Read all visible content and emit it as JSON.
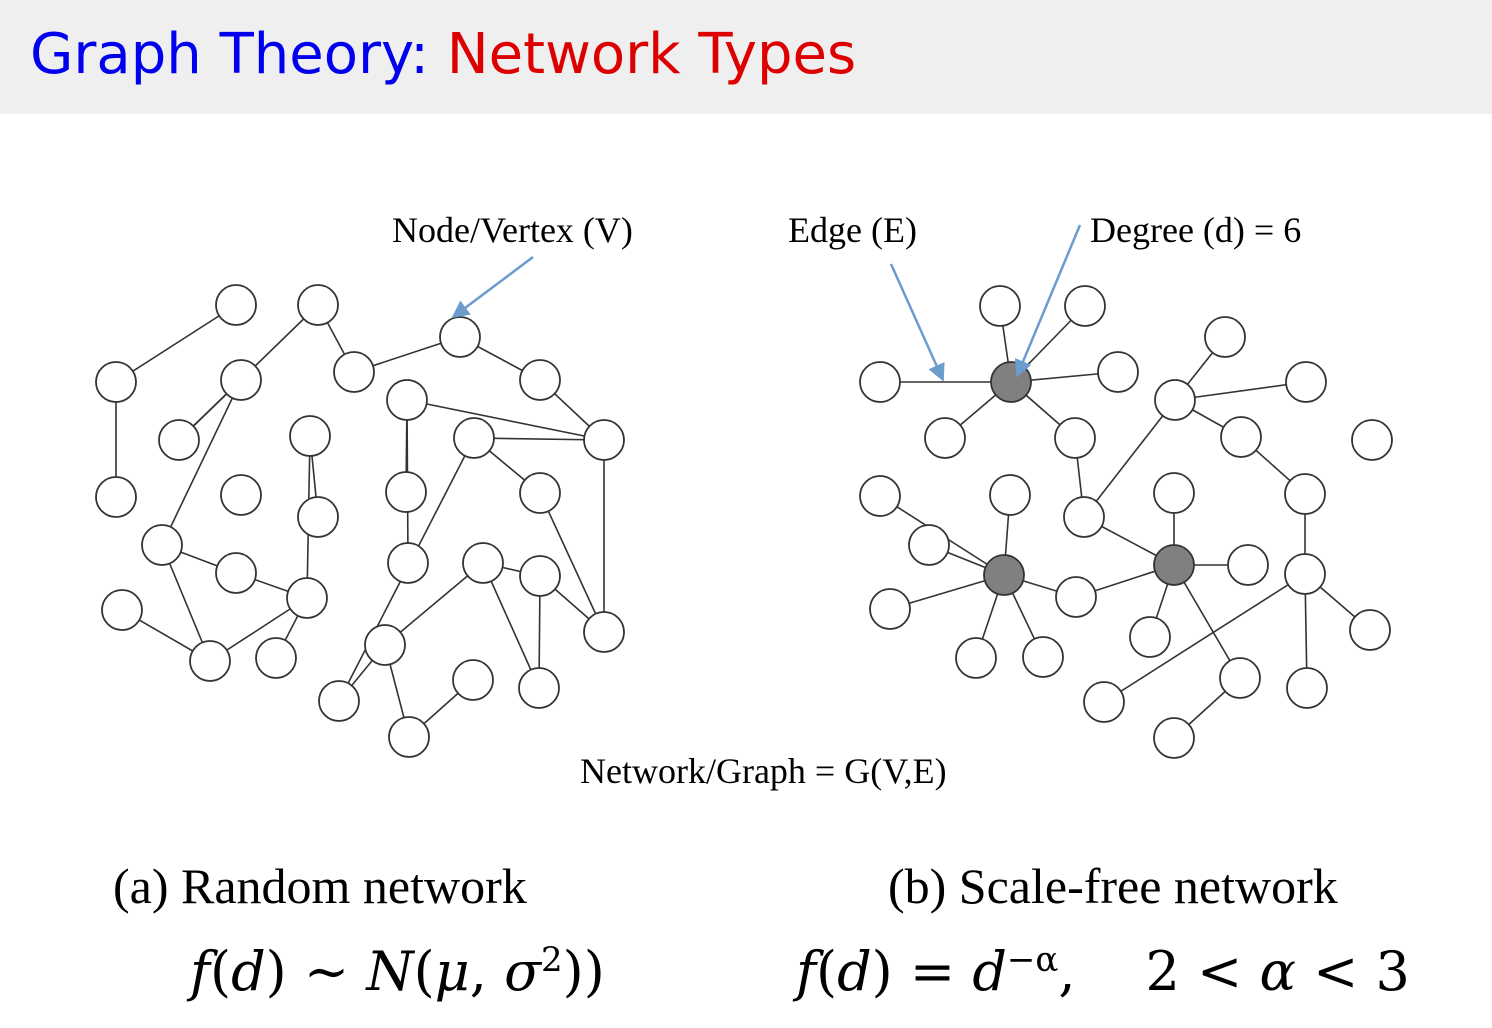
{
  "slide": {
    "title_part1": "Graph Theory:",
    "title_part2": "Network Types"
  },
  "diagram": {
    "label_node": "Node/Vertex (V)",
    "label_edge": "Edge (E)",
    "label_degree": "Degree (d) = 6",
    "label_graph": "Network/Graph = G(V,E)",
    "caption_a": "(a) Random network",
    "caption_b": "(b) Scale-free network",
    "arrow_color": "#6a9ccd",
    "hub_color": "#808080"
  },
  "formulas": {
    "a": {
      "f": "f",
      "d": "d",
      "mid": ") ∼ ",
      "N": "N",
      "mu": "μ",
      "sigma": "σ",
      "exp": "2",
      "close": ")"
    },
    "b": {
      "f": "f",
      "d": "d",
      "eq": ") = ",
      "d2": "d",
      "exp": "−α",
      "comma": ",",
      "ineq1": "2 < ",
      "alpha": "α",
      "ineq2": " < 3"
    }
  }
}
